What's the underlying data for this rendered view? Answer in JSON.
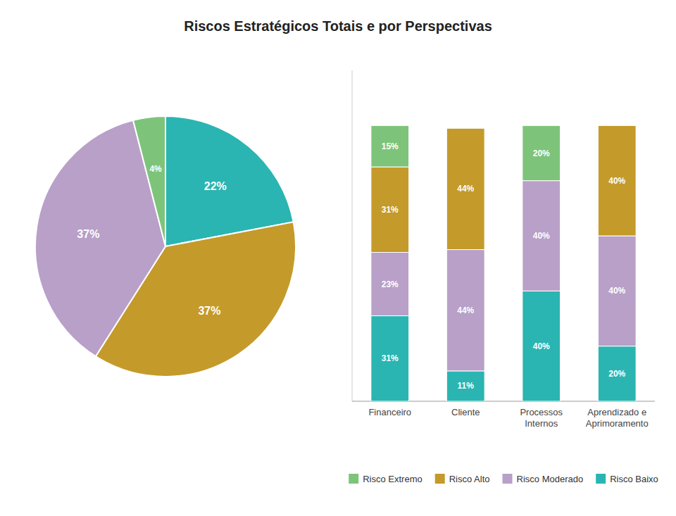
{
  "chart_data": [
    {
      "type": "pie",
      "title": "Riscos Estratégicos Totais e por Perspectivas",
      "values": [
        22,
        37,
        37,
        4
      ],
      "value_labels": [
        "22%",
        "37%",
        "37%",
        "4%"
      ],
      "colors": [
        "#2AB5B2",
        "#C49A2A",
        "#B8A0C8",
        "#7DC47A"
      ],
      "data_labels": true
    },
    {
      "type": "bar",
      "stacked": true,
      "categories": [
        "Financeiro",
        "Cliente",
        "Processos\nInternos",
        "Aprendizado e\nAprimoramento"
      ],
      "series": [
        {
          "name": "Risco Baixo",
          "color": "#2AB5B2",
          "values": [
            31,
            11,
            40,
            20
          ],
          "value_labels": [
            "31%",
            "11%",
            "40%",
            "20%"
          ]
        },
        {
          "name": "Risco Moderado",
          "color": "#B8A0C8",
          "values": [
            23,
            44,
            40,
            40
          ],
          "value_labels": [
            "23%",
            "44%",
            "40%",
            "40%"
          ]
        },
        {
          "name": "Risco Alto",
          "color": "#C49A2A",
          "values": [
            31,
            44,
            0,
            40
          ],
          "value_labels": [
            "31%",
            "44%",
            null,
            "40%"
          ]
        },
        {
          "name": "Risco Extremo",
          "color": "#7DC47A",
          "values": [
            15,
            0,
            20,
            0
          ],
          "value_labels": [
            "15%",
            null,
            "20%",
            null
          ]
        }
      ],
      "ylim": [
        0,
        120
      ],
      "grid": false,
      "tick_labels": "x",
      "data_labels": true,
      "legend": "bottom"
    }
  ]
}
